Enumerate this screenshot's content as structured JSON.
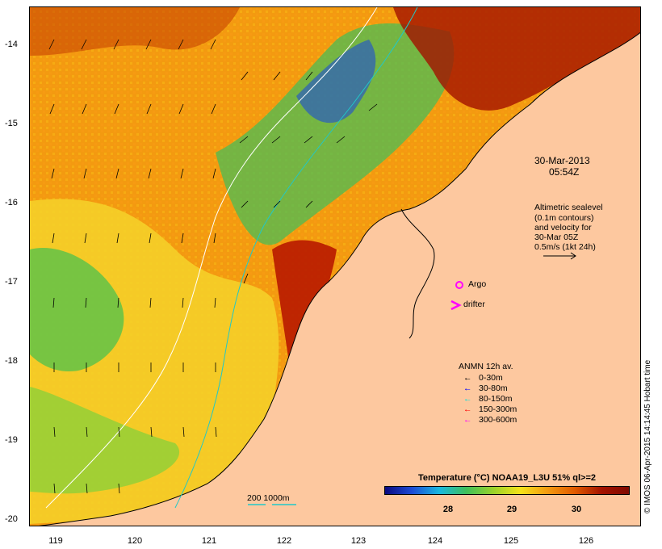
{
  "map": {
    "y_ticks": [
      "-14",
      "-15",
      "-16",
      "-17",
      "-18",
      "-19",
      "-20"
    ],
    "x_ticks": [
      "119",
      "120",
      "121",
      "122",
      "123",
      "124",
      "125",
      "126"
    ],
    "timestamp_date": "30-Mar-2013",
    "timestamp_time": "05:54Z",
    "altimetry_note": [
      "Altimetric sealevel",
      "(0.1m contours)",
      "and velocity for",
      "30-Mar 05Z",
      "0.5m/s (1kt 24h)"
    ],
    "argo_label": "Argo",
    "drifter_label": "drifter",
    "anmn_title": "ANMN 12h av.",
    "anmn_legend": [
      {
        "label": "0-30m",
        "color": "#000000"
      },
      {
        "label": "30-80m",
        "color": "#0000ff"
      },
      {
        "label": "80-150m",
        "color": "#00e0e0"
      },
      {
        "label": "150-300m",
        "color": "#ff0000"
      },
      {
        "label": "300-600m",
        "color": "#ff00ff"
      }
    ],
    "isobath_label": "200 1000m",
    "colorbar_title": "Temperature (°C) NOAA19_L3U 51% ql>=2",
    "colorbar_ticks": [
      "28",
      "29",
      "30"
    ],
    "credit": "© IMOS 06-Apr-2015 14:14:45 Hobart time",
    "colors": {
      "land": "#fdc89f",
      "warm": "#a31200",
      "cool": "#1d4cd6",
      "isobath_200": "#20c8c8",
      "isobath_1000": "#ffffff"
    }
  }
}
